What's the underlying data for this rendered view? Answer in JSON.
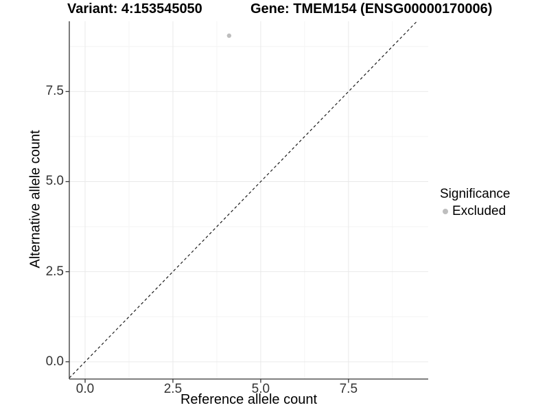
{
  "chart_data": {
    "type": "scatter",
    "title_left": "Variant: 4:153545050",
    "title_right": "Gene: TMEM154 (ENSG00000170006)",
    "xlabel": "Reference allele count",
    "ylabel": "Alternative allele count",
    "xlim": [
      -0.45,
      9.77
    ],
    "ylim": [
      -0.48,
      9.45
    ],
    "x_tick_values": [
      0,
      2.5,
      5,
      7.5
    ],
    "x_tick_labels": [
      "0.0",
      "2.5",
      "5.0",
      "7.5"
    ],
    "y_tick_values": [
      0,
      2.5,
      5,
      7.5
    ],
    "y_tick_labels": [
      "0.0",
      "2.5",
      "5.0",
      "7.5"
    ],
    "minor_tick_offset": 1.25,
    "grid": true,
    "reference_line": {
      "style": "dashed",
      "slope": 1,
      "intercept": 0
    },
    "series": [
      {
        "name": "Excluded",
        "color": "#bebebe",
        "points": [
          {
            "x": 4.1,
            "y": 9.05
          }
        ]
      }
    ],
    "legend": {
      "position": "right",
      "title": "Significance",
      "entries": [
        {
          "label": "Excluded",
          "color": "#bebebe"
        }
      ]
    },
    "colors": {
      "axis_line": "#333333",
      "tick_text": "#333333",
      "grid_major": "#e9e9e9",
      "grid_minor": "#f4f4f4",
      "reference_line": "#1a1a1a",
      "title_text": "#000000"
    }
  }
}
